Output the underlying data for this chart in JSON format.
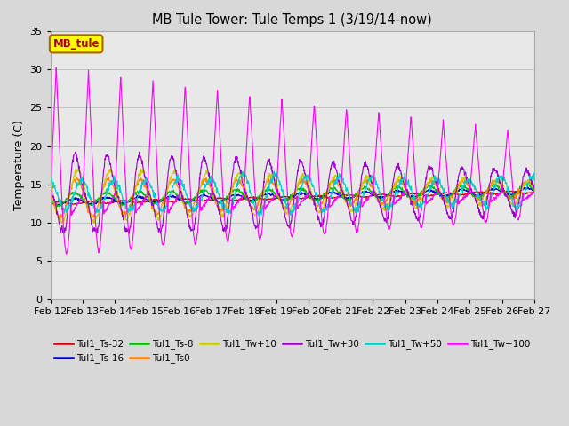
{
  "title": "MB Tule Tower: Tule Temps 1 (3/19/14-now)",
  "ylabel": "Temperature (C)",
  "ylim": [
    0,
    35
  ],
  "xlim": [
    0,
    15
  ],
  "x_tick_labels": [
    "Feb 12",
    "Feb 13",
    "Feb 14",
    "Feb 15",
    "Feb 16",
    "Feb 17",
    "Feb 18",
    "Feb 19",
    "Feb 20",
    "Feb 21",
    "Feb 22",
    "Feb 23",
    "Feb 24",
    "Feb 25",
    "Feb 26",
    "Feb 27"
  ],
  "background_color": "#d8d8d8",
  "plot_bg_color": "#e8e8e8",
  "legend_box_label": "MB_tule",
  "legend_box_color": "#ffff00",
  "legend_box_border": "#aa6600",
  "series": [
    {
      "label": "Tul1_Ts-32",
      "color": "#cc0000"
    },
    {
      "label": "Tul1_Ts-16",
      "color": "#0000cc"
    },
    {
      "label": "Tul1_Ts-8",
      "color": "#00bb00"
    },
    {
      "label": "Tul1_Ts0",
      "color": "#ff8800"
    },
    {
      "label": "Tul1_Tw+10",
      "color": "#cccc00"
    },
    {
      "label": "Tul1_Tw+30",
      "color": "#9900cc"
    },
    {
      "label": "Tul1_Tw+50",
      "color": "#00cccc"
    },
    {
      "label": "Tul1_Tw+100",
      "color": "#ff00ff"
    }
  ],
  "yticks": [
    0,
    5,
    10,
    15,
    20,
    25,
    30,
    35
  ]
}
